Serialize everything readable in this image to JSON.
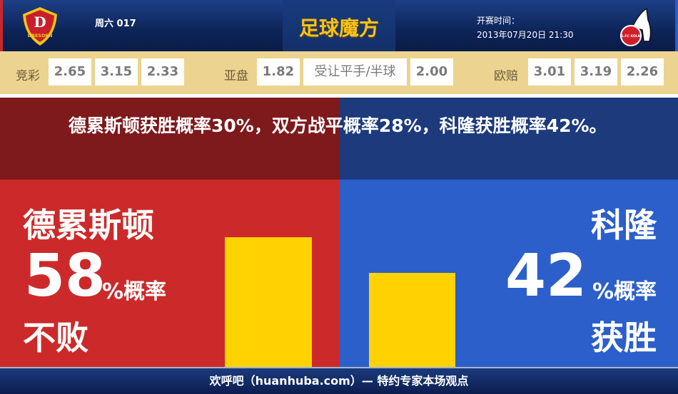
{
  "header": {
    "home_team_badge": "DRESDEN",
    "match_no": "周六 017",
    "app_title": "足球魔方",
    "kickoff_label": "开赛时间：",
    "kickoff_time": "2013年07月20日 21:30",
    "away_team_badge": "1.FC KÖLN"
  },
  "odds": {
    "jingcai": {
      "label": "竞彩",
      "values": [
        "2.65",
        "3.15",
        "2.33"
      ]
    },
    "asian": {
      "label": "亚盘",
      "values": [
        "1.82",
        "受让平手/半球",
        "2.00"
      ]
    },
    "euro": {
      "label": "欧赔",
      "values": [
        "3.01",
        "3.19",
        "2.26"
      ]
    }
  },
  "headline": "德累斯顿获胜概率30%，双方战平概率28%，科隆获胜概率42%。",
  "home": {
    "team": "德累斯顿",
    "percent": "58",
    "unit": "%概率",
    "outcome": "不败",
    "bar_percent": 58,
    "color": "#cc2a2a"
  },
  "away": {
    "team": "科隆",
    "percent": "42",
    "unit": "%概率",
    "outcome": "获胜",
    "bar_percent": 42,
    "color": "#2c5fca"
  },
  "bar_color": "#ffd200",
  "footer": "欢呼吧（huanhuba.com）— 特约专家本场观点"
}
